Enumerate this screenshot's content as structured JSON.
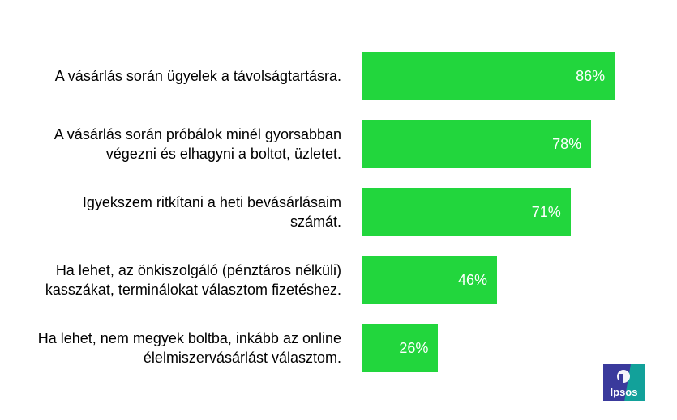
{
  "chart_data": {
    "type": "bar",
    "orientation": "horizontal",
    "categories": [
      "A vásárlás során ügyelek a távolságtartásra.",
      "A vásárlás során próbálok minél gyorsabban végezni és elhagyni a boltot, üzletet.",
      "Igyekszem ritkítani a heti bevásárlásaim számát.",
      "Ha lehet, az önkiszolgáló (pénztáros nélküli) kasszákat, terminálokat választom fizetéshez.",
      "Ha lehet, nem megyek boltba, inkább az online élelmiszervásárlást választom."
    ],
    "category_lines": [
      [
        "A vásárlás során ügyelek a távolságtartásra."
      ],
      [
        "A vásárlás során próbálok minél gyorsabban",
        "végezni és elhagyni a boltot, üzletet."
      ],
      [
        "Igyekszem ritkítani a heti bevásárlásaim",
        "számát."
      ],
      [
        "Ha lehet, az önkiszolgáló (pénztáros nélküli)",
        "kasszákat, terminálokat választom fizetéshez."
      ],
      [
        "Ha lehet, nem megyek boltba, inkább az online",
        "élelmiszervásárlást választom."
      ]
    ],
    "values": [
      86,
      78,
      71,
      46,
      26
    ],
    "value_labels": [
      "86%",
      "78%",
      "71%",
      "46%",
      "26%"
    ],
    "unit": "%",
    "xlim": [
      0,
      100
    ],
    "bar_color": "#22d63d",
    "label_color": "#ffffff",
    "grid": false,
    "legend": "none"
  },
  "logo": {
    "text": "Ipsos",
    "color_primary": "#3a3a9c",
    "color_secondary": "#12a19a"
  }
}
